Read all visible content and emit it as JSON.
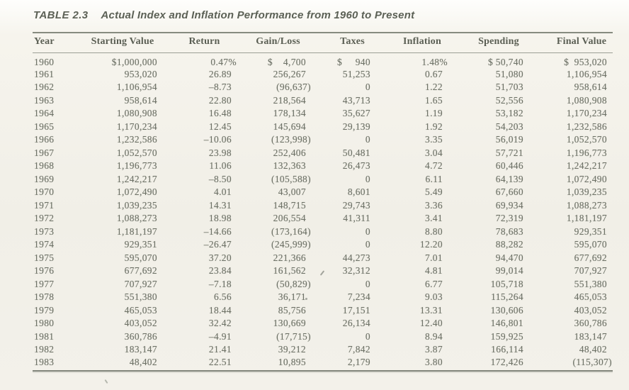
{
  "caption": {
    "label": "TABLE 2.3",
    "title": "Actual Index and Inflation Performance from 1960 to Present"
  },
  "table": {
    "columns": [
      "Year",
      "Starting Value",
      "Return",
      "Gain/Loss",
      "Taxes",
      "Inflation",
      "Spending",
      "Final Value"
    ],
    "rows": [
      [
        "1960",
        "$1,000,000",
        "0.47%",
        "$    4,700",
        "$     940",
        "1.48%",
        "$ 50,740",
        "$  953,020"
      ],
      [
        "1961",
        "953,020",
        "26.89",
        "256,267",
        "51,253",
        "0.67",
        "51,080",
        "1,106,954"
      ],
      [
        "1962",
        "1,106,954",
        "–8.73",
        "(96,637)",
        "0",
        "1.22",
        "51,703",
        "958,614"
      ],
      [
        "1963",
        "958,614",
        "22.80",
        "218,564",
        "43,713",
        "1.65",
        "52,556",
        "1,080,908"
      ],
      [
        "1964",
        "1,080,908",
        "16.48",
        "178,134",
        "35,627",
        "1.19",
        "53,182",
        "1,170,234"
      ],
      [
        "1965",
        "1,170,234",
        "12.45",
        "145,694",
        "29,139",
        "1.92",
        "54,203",
        "1,232,586"
      ],
      [
        "1966",
        "1,232,586",
        "–10.06",
        "(123,998)",
        "0",
        "3.35",
        "56,019",
        "1,052,570"
      ],
      [
        "1967",
        "1,052,570",
        "23.98",
        "252,406",
        "50,481",
        "3.04",
        "57,721",
        "1,196,773"
      ],
      [
        "1968",
        "1,196,773",
        "11.06",
        "132,363",
        "26,473",
        "4.72",
        "60,446",
        "1,242,217"
      ],
      [
        "1969",
        "1,242,217",
        "–8.50",
        "(105,588)",
        "0",
        "6.11",
        "64,139",
        "1,072,490"
      ],
      [
        "1970",
        "1,072,490",
        "4.01",
        "43,007",
        "8,601",
        "5.49",
        "67,660",
        "1,039,235"
      ],
      [
        "1971",
        "1,039,235",
        "14.31",
        "148,715",
        "29,743",
        "3.36",
        "69,934",
        "1,088,273"
      ],
      [
        "1972",
        "1,088,273",
        "18.98",
        "206,554",
        "41,311",
        "3.41",
        "72,319",
        "1,181,197"
      ],
      [
        "1973",
        "1,181,197",
        "–14.66",
        "(173,164)",
        "0",
        "8.80",
        "78,683",
        "929,351"
      ],
      [
        "1974",
        "929,351",
        "–26.47",
        "(245,999)",
        "0",
        "12.20",
        "88,282",
        "595,070"
      ],
      [
        "1975",
        "595,070",
        "37.20",
        "221,366",
        "44,273",
        "7.01",
        "94,470",
        "677,692"
      ],
      [
        "1976",
        "677,692",
        "23.84",
        "161,562",
        "32,312",
        "4.81",
        "99,014",
        "707,927"
      ],
      [
        "1977",
        "707,927",
        "–7.18",
        "(50,829)",
        "0",
        "6.77",
        "105,718",
        "551,380"
      ],
      [
        "1978",
        "551,380",
        "6.56",
        "36,171",
        "7,234",
        "9.03",
        "115,264",
        "465,053"
      ],
      [
        "1979",
        "465,053",
        "18.44",
        "85,756",
        "17,151",
        "13.31",
        "130,606",
        "403,052"
      ],
      [
        "1980",
        "403,052",
        "32.42",
        "130,669",
        "26,134",
        "12.40",
        "146,801",
        "360,786"
      ],
      [
        "1981",
        "360,786",
        "–4.91",
        "(17,715)",
        "0",
        "8.94",
        "159,925",
        "183,147"
      ],
      [
        "1982",
        "183,147",
        "21.41",
        "39,212",
        "7,842",
        "3.87",
        "166,114",
        "48,402"
      ],
      [
        "1983",
        "48,402",
        "22.51",
        "10,895",
        "2,179",
        "3.80",
        "172,426",
        "(115,307)"
      ]
    ]
  }
}
